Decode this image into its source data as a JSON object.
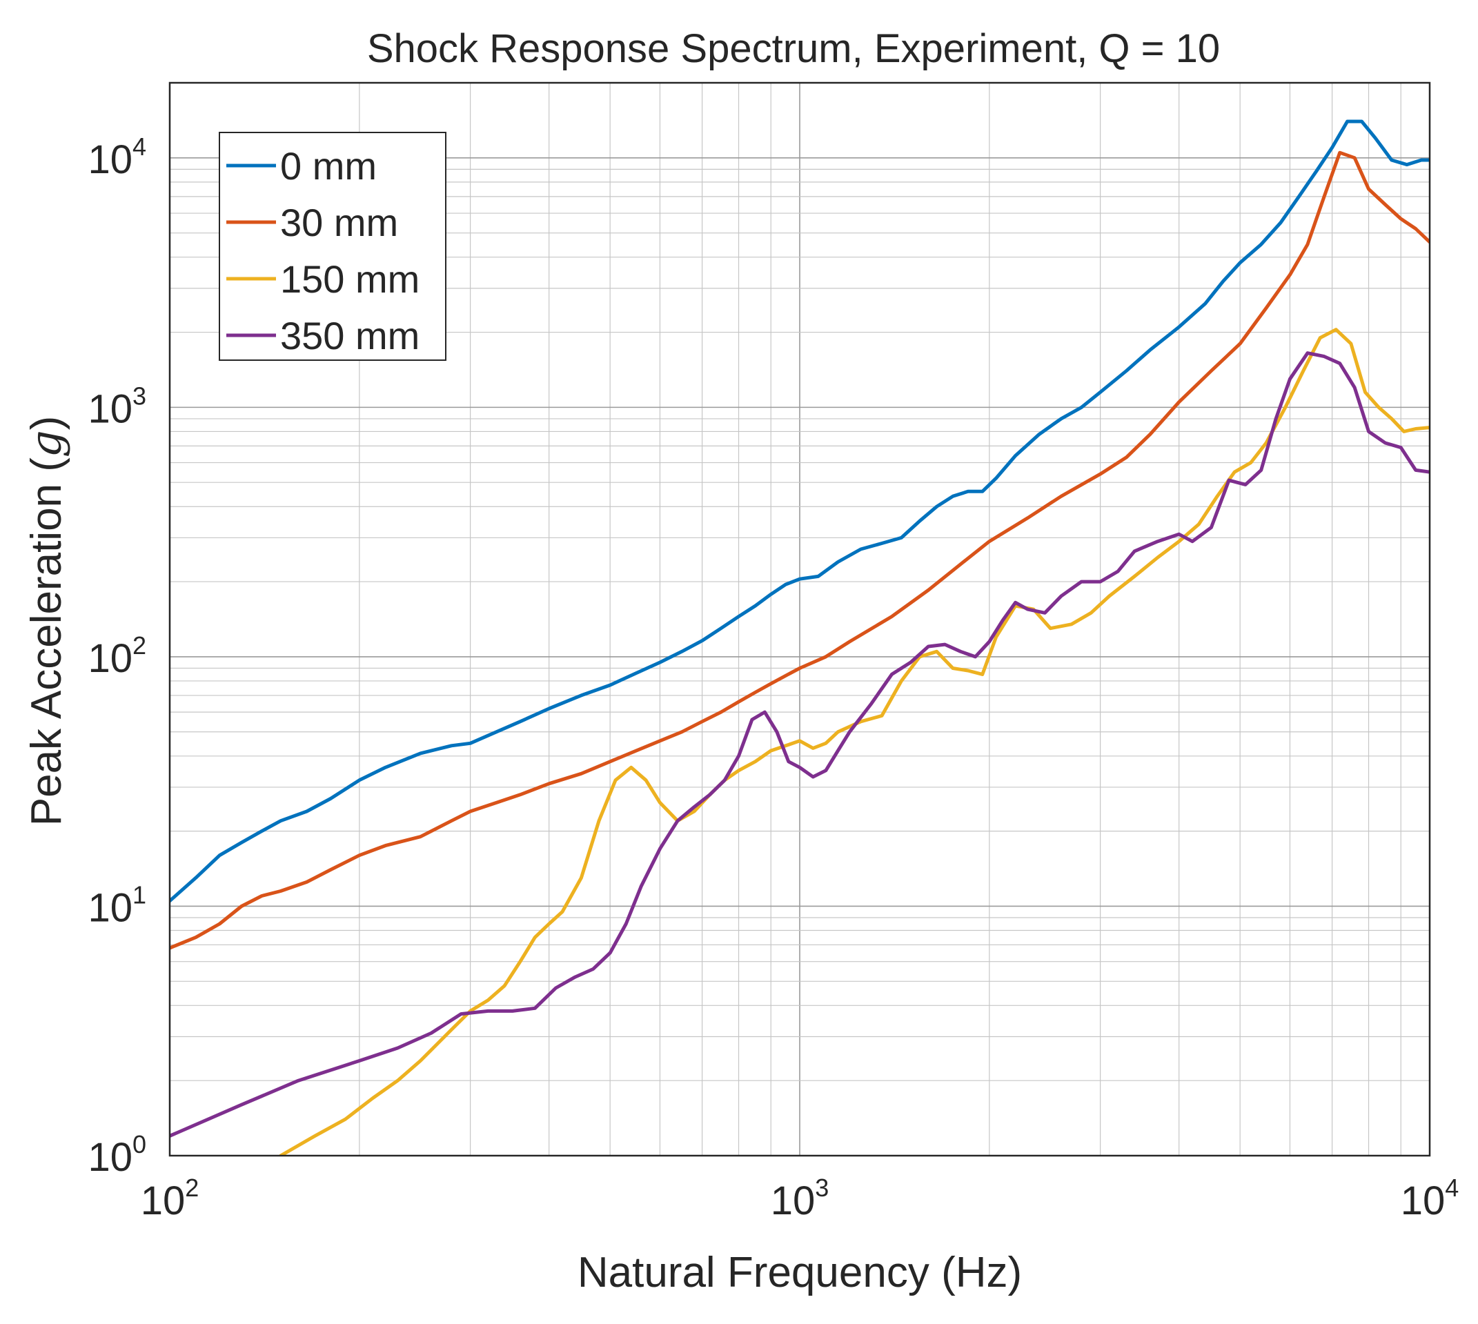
{
  "chart_data": {
    "type": "line",
    "title": "Shock Response Spectrum, Experiment, Q = 10",
    "xlabel": "Natural Frequency (Hz)",
    "ylabel_prefix": "Peak Acceleration (",
    "ylabel_unit": "g",
    "ylabel_suffix": ")",
    "xscale": "log",
    "yscale": "log",
    "xlim": [
      100,
      10000
    ],
    "ylim": [
      1,
      20000
    ],
    "grid": true,
    "legend_position": "top-left",
    "x_ticks": [
      {
        "value": 100,
        "base": "10",
        "exp": "2"
      },
      {
        "value": 1000,
        "base": "10",
        "exp": "3"
      },
      {
        "value": 10000,
        "base": "10",
        "exp": "4"
      }
    ],
    "y_ticks": [
      {
        "value": 1,
        "base": "10",
        "exp": "0"
      },
      {
        "value": 10,
        "base": "10",
        "exp": "1"
      },
      {
        "value": 100,
        "base": "10",
        "exp": "2"
      },
      {
        "value": 1000,
        "base": "10",
        "exp": "3"
      },
      {
        "value": 10000,
        "base": "10",
        "exp": "4"
      }
    ],
    "series": [
      {
        "name": "0 mm",
        "color": "#0072BD",
        "points": [
          [
            100,
            10.5
          ],
          [
            110,
            13
          ],
          [
            120,
            16
          ],
          [
            130,
            18
          ],
          [
            140,
            20
          ],
          [
            150,
            22
          ],
          [
            165,
            24
          ],
          [
            180,
            27
          ],
          [
            200,
            32
          ],
          [
            220,
            36
          ],
          [
            250,
            41
          ],
          [
            280,
            44
          ],
          [
            300,
            45
          ],
          [
            330,
            50
          ],
          [
            360,
            55
          ],
          [
            400,
            62
          ],
          [
            450,
            70
          ],
          [
            500,
            77
          ],
          [
            550,
            86
          ],
          [
            600,
            95
          ],
          [
            650,
            105
          ],
          [
            700,
            116
          ],
          [
            750,
            130
          ],
          [
            800,
            145
          ],
          [
            850,
            160
          ],
          [
            900,
            178
          ],
          [
            950,
            195
          ],
          [
            1000,
            205
          ],
          [
            1070,
            210
          ],
          [
            1150,
            240
          ],
          [
            1250,
            270
          ],
          [
            1350,
            285
          ],
          [
            1450,
            300
          ],
          [
            1550,
            350
          ],
          [
            1650,
            400
          ],
          [
            1750,
            440
          ],
          [
            1850,
            460
          ],
          [
            1950,
            460
          ],
          [
            2050,
            520
          ],
          [
            2200,
            640
          ],
          [
            2400,
            780
          ],
          [
            2600,
            900
          ],
          [
            2800,
            1000
          ],
          [
            3000,
            1150
          ],
          [
            3300,
            1400
          ],
          [
            3600,
            1700
          ],
          [
            4000,
            2100
          ],
          [
            4400,
            2600
          ],
          [
            4700,
            3200
          ],
          [
            5000,
            3800
          ],
          [
            5400,
            4500
          ],
          [
            5800,
            5500
          ],
          [
            6200,
            7000
          ],
          [
            6600,
            8800
          ],
          [
            7000,
            11000
          ],
          [
            7400,
            14000
          ],
          [
            7800,
            14000
          ],
          [
            8200,
            12000
          ],
          [
            8700,
            9800
          ],
          [
            9200,
            9400
          ],
          [
            9700,
            9800
          ],
          [
            10000,
            9800
          ]
        ]
      },
      {
        "name": "30 mm",
        "color": "#D95319",
        "points": [
          [
            100,
            6.8
          ],
          [
            110,
            7.5
          ],
          [
            120,
            8.5
          ],
          [
            130,
            10
          ],
          [
            140,
            11
          ],
          [
            150,
            11.5
          ],
          [
            165,
            12.5
          ],
          [
            180,
            14
          ],
          [
            200,
            16
          ],
          [
            220,
            17.5
          ],
          [
            250,
            19
          ],
          [
            280,
            22
          ],
          [
            300,
            24
          ],
          [
            330,
            26
          ],
          [
            360,
            28
          ],
          [
            400,
            31
          ],
          [
            450,
            34
          ],
          [
            500,
            38
          ],
          [
            550,
            42
          ],
          [
            600,
            46
          ],
          [
            650,
            50
          ],
          [
            700,
            55
          ],
          [
            750,
            60
          ],
          [
            800,
            66
          ],
          [
            850,
            72
          ],
          [
            900,
            78
          ],
          [
            950,
            84
          ],
          [
            1000,
            90
          ],
          [
            1100,
            100
          ],
          [
            1200,
            115
          ],
          [
            1400,
            145
          ],
          [
            1600,
            185
          ],
          [
            1800,
            235
          ],
          [
            2000,
            290
          ],
          [
            2300,
            360
          ],
          [
            2600,
            440
          ],
          [
            3000,
            540
          ],
          [
            3300,
            630
          ],
          [
            3600,
            780
          ],
          [
            4000,
            1050
          ],
          [
            4500,
            1400
          ],
          [
            5000,
            1800
          ],
          [
            5500,
            2500
          ],
          [
            6000,
            3400
          ],
          [
            6400,
            4500
          ],
          [
            6800,
            7000
          ],
          [
            7200,
            10500
          ],
          [
            7600,
            10000
          ],
          [
            8000,
            7500
          ],
          [
            8500,
            6500
          ],
          [
            9000,
            5700
          ],
          [
            9500,
            5200
          ],
          [
            10000,
            4600
          ]
        ]
      },
      {
        "name": "150 mm",
        "color": "#EDB120",
        "points": [
          [
            150,
            1
          ],
          [
            170,
            1.2
          ],
          [
            190,
            1.4
          ],
          [
            210,
            1.7
          ],
          [
            230,
            2.0
          ],
          [
            250,
            2.4
          ],
          [
            280,
            3.2
          ],
          [
            300,
            3.8
          ],
          [
            320,
            4.2
          ],
          [
            340,
            4.8
          ],
          [
            360,
            6
          ],
          [
            380,
            7.5
          ],
          [
            400,
            8.5
          ],
          [
            420,
            9.5
          ],
          [
            450,
            13
          ],
          [
            480,
            22
          ],
          [
            510,
            32
          ],
          [
            540,
            36
          ],
          [
            570,
            32
          ],
          [
            600,
            26
          ],
          [
            640,
            22
          ],
          [
            680,
            24
          ],
          [
            720,
            28
          ],
          [
            760,
            32
          ],
          [
            800,
            35
          ],
          [
            850,
            38
          ],
          [
            900,
            42
          ],
          [
            950,
            44
          ],
          [
            1000,
            46
          ],
          [
            1050,
            43
          ],
          [
            1100,
            45
          ],
          [
            1150,
            50
          ],
          [
            1250,
            55
          ],
          [
            1350,
            58
          ],
          [
            1450,
            80
          ],
          [
            1550,
            100
          ],
          [
            1650,
            105
          ],
          [
            1750,
            90
          ],
          [
            1850,
            88
          ],
          [
            1950,
            85
          ],
          [
            2050,
            120
          ],
          [
            2200,
            160
          ],
          [
            2350,
            155
          ],
          [
            2500,
            130
          ],
          [
            2700,
            135
          ],
          [
            2900,
            150
          ],
          [
            3100,
            175
          ],
          [
            3400,
            210
          ],
          [
            3700,
            250
          ],
          [
            4000,
            290
          ],
          [
            4300,
            340
          ],
          [
            4600,
            440
          ],
          [
            4900,
            550
          ],
          [
            5200,
            600
          ],
          [
            5500,
            720
          ],
          [
            5900,
            1000
          ],
          [
            6300,
            1400
          ],
          [
            6700,
            1900
          ],
          [
            7100,
            2050
          ],
          [
            7500,
            1800
          ],
          [
            7900,
            1150
          ],
          [
            8300,
            1000
          ],
          [
            8700,
            900
          ],
          [
            9100,
            800
          ],
          [
            9500,
            820
          ],
          [
            10000,
            830
          ]
        ]
      },
      {
        "name": "350 mm",
        "color": "#7E2F8E",
        "points": [
          [
            100,
            1.2
          ],
          [
            130,
            1.6
          ],
          [
            160,
            2.0
          ],
          [
            200,
            2.4
          ],
          [
            230,
            2.7
          ],
          [
            260,
            3.1
          ],
          [
            290,
            3.7
          ],
          [
            320,
            3.8
          ],
          [
            350,
            3.8
          ],
          [
            380,
            3.9
          ],
          [
            410,
            4.7
          ],
          [
            440,
            5.2
          ],
          [
            470,
            5.6
          ],
          [
            500,
            6.5
          ],
          [
            530,
            8.5
          ],
          [
            560,
            12
          ],
          [
            600,
            17
          ],
          [
            640,
            22
          ],
          [
            680,
            25
          ],
          [
            720,
            28
          ],
          [
            760,
            32
          ],
          [
            800,
            40
          ],
          [
            840,
            56
          ],
          [
            880,
            60
          ],
          [
            920,
            50
          ],
          [
            960,
            38
          ],
          [
            1000,
            36
          ],
          [
            1050,
            33
          ],
          [
            1100,
            35
          ],
          [
            1150,
            42
          ],
          [
            1200,
            50
          ],
          [
            1300,
            65
          ],
          [
            1400,
            85
          ],
          [
            1500,
            95
          ],
          [
            1600,
            110
          ],
          [
            1700,
            112
          ],
          [
            1800,
            105
          ],
          [
            1900,
            100
          ],
          [
            2000,
            115
          ],
          [
            2100,
            140
          ],
          [
            2200,
            165
          ],
          [
            2300,
            155
          ],
          [
            2450,
            150
          ],
          [
            2600,
            175
          ],
          [
            2800,
            200
          ],
          [
            3000,
            200
          ],
          [
            3200,
            220
          ],
          [
            3400,
            265
          ],
          [
            3700,
            290
          ],
          [
            4000,
            310
          ],
          [
            4200,
            290
          ],
          [
            4500,
            330
          ],
          [
            4800,
            510
          ],
          [
            5100,
            490
          ],
          [
            5400,
            560
          ],
          [
            5700,
            900
          ],
          [
            6000,
            1300
          ],
          [
            6400,
            1650
          ],
          [
            6800,
            1600
          ],
          [
            7200,
            1500
          ],
          [
            7600,
            1200
          ],
          [
            8000,
            800
          ],
          [
            8500,
            720
          ],
          [
            9000,
            690
          ],
          [
            9500,
            560
          ],
          [
            10000,
            550
          ]
        ]
      }
    ]
  }
}
